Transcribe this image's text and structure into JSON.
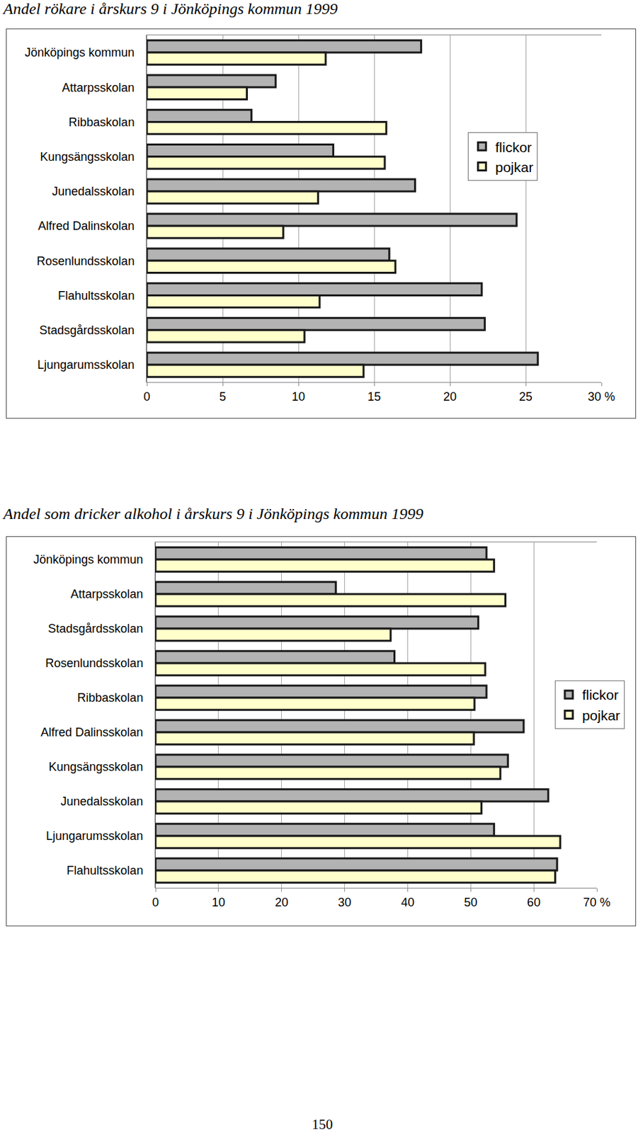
{
  "chart_data": [
    {
      "type": "bar",
      "orientation": "horizontal",
      "title": "Andel rökare i årskurs 9 i Jönköpings kommun 1999",
      "categories": [
        "Jönköpings kommun",
        "Attarpsskolan",
        "Ribbaskolan",
        "Kungsängsskolan",
        "Junedalsskolan",
        "Alfred Dalinskolan",
        "Rosenlundsskolan",
        "Flahultsskolan",
        "Stadsgårdsskolan",
        "Ljungarumsskolan"
      ],
      "series": [
        {
          "name": "flickor",
          "color": "#b3b3b3",
          "values": [
            18.1,
            8.5,
            6.9,
            12.3,
            17.7,
            24.4,
            16.0,
            22.1,
            22.3,
            25.8
          ]
        },
        {
          "name": "pojkar",
          "color": "#ffffcc",
          "values": [
            11.8,
            6.6,
            15.8,
            15.7,
            11.3,
            9.0,
            16.4,
            11.4,
            10.4,
            14.3
          ]
        }
      ],
      "xlim": [
        0,
        30
      ],
      "xticks": [
        0,
        5,
        10,
        15,
        20,
        25,
        {
          "value": 30,
          "label": "30 %"
        }
      ],
      "grid": true,
      "legend": "upper right"
    },
    {
      "type": "bar",
      "orientation": "horizontal",
      "title": "Andel som dricker alkohol i årskurs 9 i Jönköpings kommun 1999",
      "categories": [
        "Jönköpings kommun",
        "Attarpsskolan",
        "Stadsgårdsskolan",
        "Rosenlundsskolan",
        "Ribbaskolan",
        "Alfred Dalinsskolan",
        "Kungsängsskolan",
        "Junedalsskolan",
        "Ljungarumsskolan",
        "Flahultsskolan"
      ],
      "series": [
        {
          "name": "flickor",
          "color": "#b3b3b3",
          "values": [
            52.5,
            28.6,
            51.2,
            37.9,
            52.5,
            58.4,
            55.9,
            62.3,
            53.7,
            63.7
          ]
        },
        {
          "name": "pojkar",
          "color": "#ffffcc",
          "values": [
            53.7,
            55.5,
            37.3,
            52.3,
            50.6,
            50.5,
            54.7,
            51.7,
            64.2,
            63.4
          ]
        }
      ],
      "xlim": [
        0,
        70
      ],
      "xticks": [
        0,
        10,
        20,
        30,
        40,
        50,
        60,
        {
          "value": 70,
          "label": "70 %"
        }
      ],
      "grid": true,
      "legend": "right"
    }
  ],
  "page_number": 150
}
